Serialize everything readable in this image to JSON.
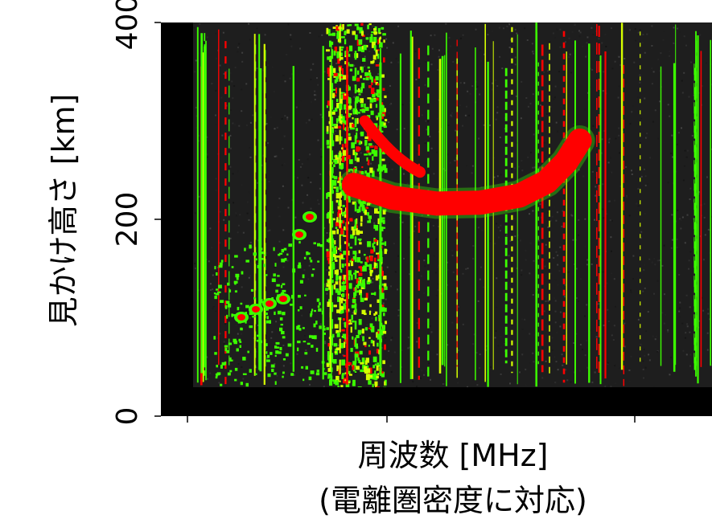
{
  "chart_data": {
    "type": "heatmap",
    "title": "",
    "xlabel": "周波数 [MHz]",
    "xlabel_sub": "(電離圏密度に対応)",
    "ylabel": "見かけ高さ [km]",
    "yticks": [
      0,
      200,
      400
    ],
    "ylim": [
      0,
      400
    ],
    "xticks_labeled": false,
    "x_tick_count": 3,
    "grid": false,
    "legend": "none",
    "colors": {
      "background": "#000000",
      "noise_dark": "#1e1e1e",
      "echo_green": "#3cff00",
      "echo_yellow": "#d6ff00",
      "echo_red": "#ff0000"
    },
    "traces": [
      {
        "name": "",
        "kind": "ionospheric-echo-trace",
        "points": [
          [
            0.35,
            235
          ],
          [
            0.42,
            222
          ],
          [
            0.5,
            216
          ],
          [
            0.58,
            217
          ],
          [
            0.65,
            224
          ],
          [
            0.7,
            238
          ],
          [
            0.735,
            258
          ],
          [
            0.76,
            280
          ]
        ]
      }
    ]
  }
}
